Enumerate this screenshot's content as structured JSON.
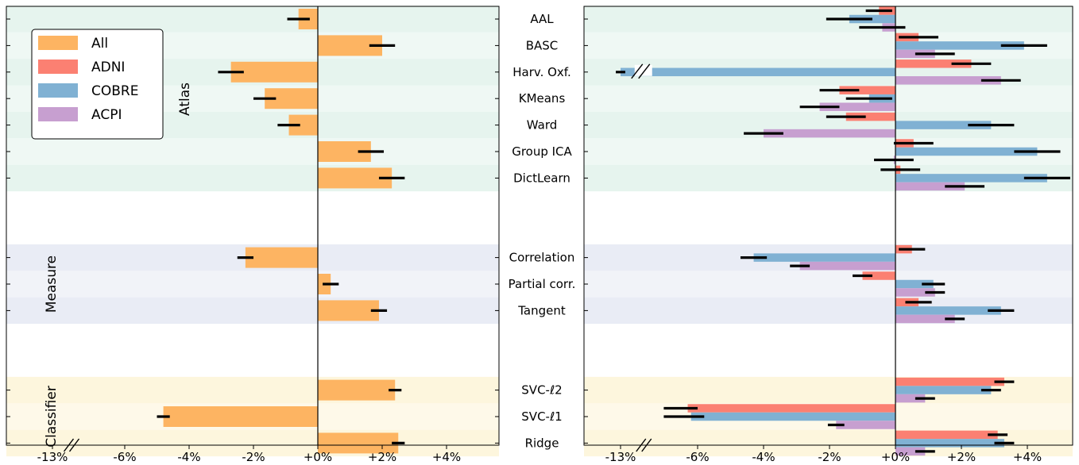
{
  "chart_data": {
    "type": "bar",
    "orientation": "horizontal",
    "x_ticks": [
      "-13%",
      "-6%",
      "-4%",
      "-2%",
      "+0%",
      "+2%",
      "+4%"
    ],
    "groups": [
      {
        "label": "Atlas",
        "color": "#e6f4ee",
        "rows": [
          "AAL",
          "BASC",
          "Harv. Oxf.",
          "KMeans",
          "Ward",
          "Group ICA",
          "DictLearn"
        ]
      },
      {
        "label": "Measure",
        "color": "#e9ecf5",
        "rows": [
          "Correlation",
          "Partial corr.",
          "Tangent"
        ]
      },
      {
        "label": "Classifier",
        "color": "#fdf6dd",
        "rows": [
          "SVC-ℓ2",
          "SVC-ℓ1",
          "Ridge"
        ]
      }
    ],
    "left_panel": {
      "series": [
        {
          "name": "All",
          "color": "#fdb462"
        }
      ],
      "values": {
        "AAL": {
          "All": [
            -0.6,
            0.35
          ]
        },
        "BASC": {
          "All": [
            2.0,
            0.4
          ]
        },
        "Harv. Oxf.": {
          "All": [
            -2.7,
            0.4
          ]
        },
        "KMeans": {
          "All": [
            -1.65,
            0.35
          ]
        },
        "Ward": {
          "All": [
            -0.9,
            0.35
          ]
        },
        "Group ICA": {
          "All": [
            1.65,
            0.4
          ]
        },
        "DictLearn": {
          "All": [
            2.3,
            0.4
          ]
        },
        "Correlation": {
          "All": [
            -2.25,
            0.25
          ]
        },
        "Partial corr.": {
          "All": [
            0.4,
            0.25
          ]
        },
        "Tangent": {
          "All": [
            1.9,
            0.25
          ]
        },
        "SVC-ℓ2": {
          "All": [
            2.4,
            0.2
          ]
        },
        "SVC-ℓ1": {
          "All": [
            -4.8,
            0.2
          ]
        },
        "Ridge": {
          "All": [
            2.5,
            0.2
          ]
        }
      }
    },
    "right_panel": {
      "series": [
        {
          "name": "ADNI",
          "color": "#fb8072"
        },
        {
          "name": "COBRE",
          "color": "#80b1d3"
        },
        {
          "name": "ACPI",
          "color": "#c79fd0"
        }
      ],
      "values": {
        "AAL": {
          "ADNI": [
            -0.5,
            0.4
          ],
          "COBRE": [
            -1.4,
            0.7
          ],
          "ACPI": [
            -0.4,
            0.7
          ]
        },
        "BASC": {
          "ADNI": [
            0.7,
            0.6
          ],
          "COBRE": [
            3.9,
            0.7
          ],
          "ACPI": [
            1.2,
            0.6
          ]
        },
        "Harv. Oxf.": {
          "ADNI": [
            2.3,
            0.6
          ],
          "COBRE": [
            -13.0,
            0.7
          ],
          "ACPI": [
            3.2,
            0.6
          ]
        },
        "KMeans": {
          "ADNI": [
            -1.7,
            0.6
          ],
          "COBRE": [
            -0.8,
            0.7
          ],
          "ACPI": [
            -2.3,
            0.6
          ]
        },
        "Ward": {
          "ADNI": [
            -1.5,
            0.6
          ],
          "COBRE": [
            2.9,
            0.7
          ],
          "ACPI": [
            -4.0,
            0.6
          ]
        },
        "Group ICA": {
          "ADNI": [
            0.55,
            0.6
          ],
          "COBRE": [
            4.3,
            0.7
          ],
          "ACPI": [
            -0.05,
            0.6
          ]
        },
        "DictLearn": {
          "ADNI": [
            0.15,
            0.6
          ],
          "COBRE": [
            4.6,
            0.7
          ],
          "ACPI": [
            2.1,
            0.6
          ]
        },
        "Correlation": {
          "ADNI": [
            0.5,
            0.4
          ],
          "COBRE": [
            -4.3,
            0.4
          ],
          "ACPI": [
            -2.9,
            0.3
          ]
        },
        "Partial corr.": {
          "ADNI": [
            -1.0,
            0.3
          ],
          "COBRE": [
            1.15,
            0.35
          ],
          "ACPI": [
            1.2,
            0.3
          ]
        },
        "Tangent": {
          "ADNI": [
            0.7,
            0.4
          ],
          "COBRE": [
            3.2,
            0.4
          ],
          "ACPI": [
            1.8,
            0.3
          ]
        },
        "SVC-ℓ2": {
          "ADNI": [
            3.3,
            0.3
          ],
          "COBRE": [
            2.9,
            0.3
          ],
          "ACPI": [
            0.9,
            0.3
          ]
        },
        "SVC-ℓ1": {
          "ADNI": [
            -6.3,
            0.3
          ],
          "COBRE": [
            -6.2,
            0.4
          ],
          "ACPI": [
            -1.8,
            0.25
          ]
        },
        "Ridge": {
          "ADNI": [
            3.1,
            0.3
          ],
          "COBRE": [
            3.3,
            0.3
          ],
          "ACPI": [
            0.9,
            0.3
          ]
        }
      }
    },
    "legend": {
      "position": "top-left",
      "entries": [
        {
          "name": "All",
          "color": "#fdb462"
        },
        {
          "name": "ADNI",
          "color": "#fb8072"
        },
        {
          "name": "COBRE",
          "color": "#80b1d3"
        },
        {
          "name": "ACPI",
          "color": "#c79fd0"
        }
      ]
    }
  }
}
